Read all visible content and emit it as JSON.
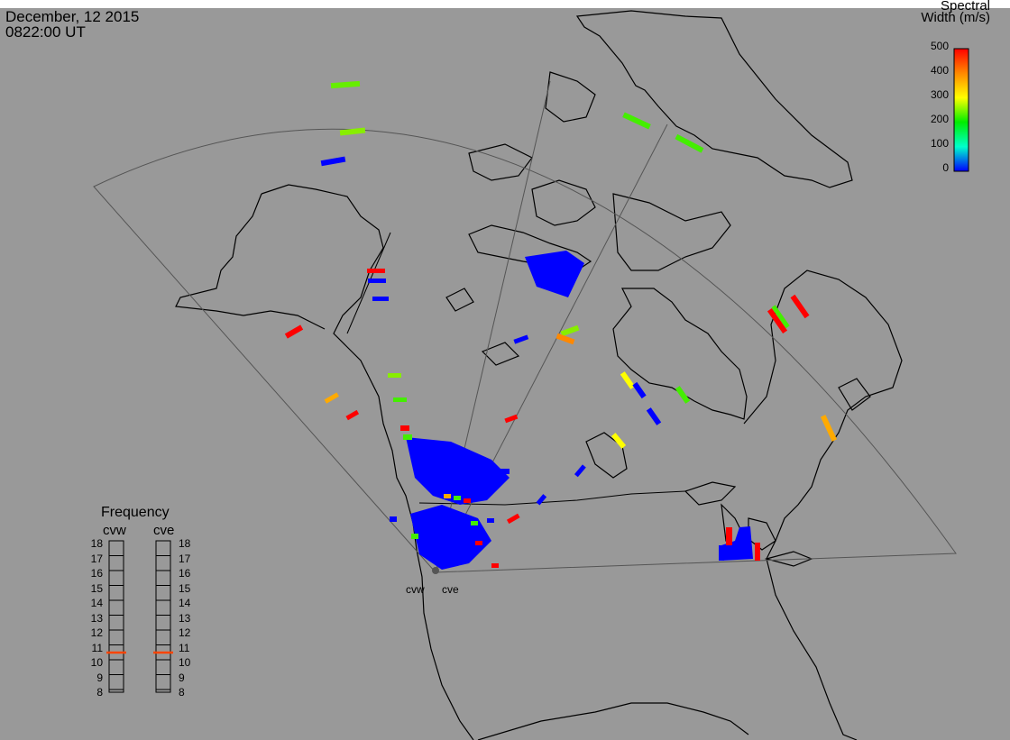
{
  "header": {
    "date": "December, 12 2015",
    "time": "0822:00 UT"
  },
  "colorbar": {
    "title_line1": "Spectral",
    "title_line2": "Width (m/s)",
    "ticks": [
      "500",
      "400",
      "300",
      "200",
      "100",
      "0"
    ],
    "colors": [
      "#ff0000",
      "#ff8800",
      "#ffff00",
      "#00ee00",
      "#00ffcc",
      "#0000ff"
    ]
  },
  "frequency": {
    "title": "Frequency",
    "radars": [
      "cvw",
      "cve"
    ],
    "scale": [
      "18",
      "17",
      "16",
      "15",
      "14",
      "13",
      "12",
      "11",
      "10",
      "9",
      "8"
    ],
    "current_mhz": {
      "cvw": 10.7,
      "cve": 10.7
    },
    "marker_color": "#ff4400"
  },
  "sites": [
    {
      "name": "cvw"
    },
    {
      "name": "cve"
    }
  ],
  "map": {
    "background": "#999999",
    "scatter_color": "#0000ff"
  }
}
